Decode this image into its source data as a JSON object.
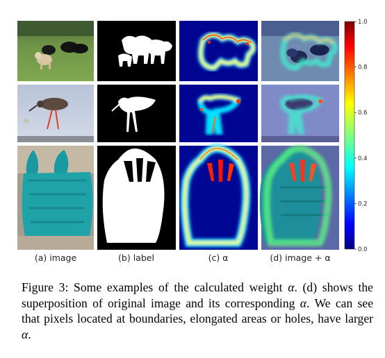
{
  "panel_labels": [
    "(a) image",
    "(b) label",
    "(c) α",
    "(d) image + α"
  ],
  "colorbar_ticks": [
    "1.0",
    "0.8",
    "0.6",
    "0.4",
    "0.2",
    "0.0"
  ],
  "caption": {
    "prefix": "Figure 3: Some examples of the calculated weight ",
    "alpha1": "α",
    "middle": ". (d) shows the superposition of original image and its corresponding ",
    "alpha2": "α",
    "middle2": ". We can see that pixels located at boundaries, elongated areas or holes, have larger ",
    "alpha3": "α",
    "suffix": "."
  },
  "colors": {
    "jet_low": "#00007f",
    "jet_mid": "#7fff7f",
    "jet_high": "#7f0000"
  },
  "image_descriptions_rows": [
    "dogs",
    "bird",
    "bag"
  ]
}
